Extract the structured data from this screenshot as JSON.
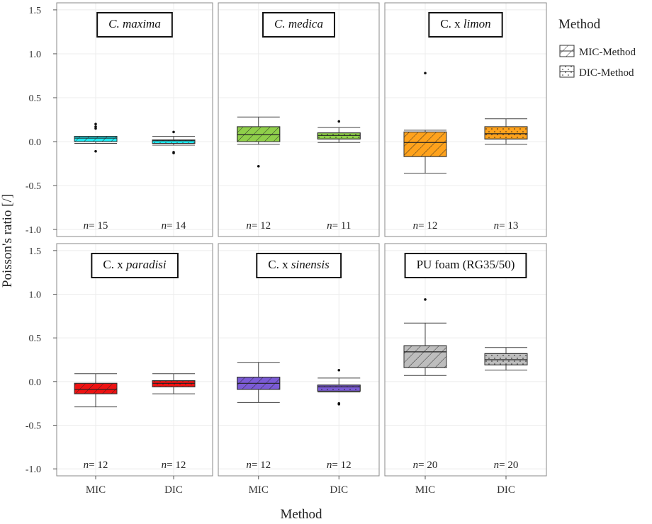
{
  "chart_data": {
    "type": "boxplot",
    "xlabel": "Method",
    "ylabel": "Poisson's ratio [/]",
    "ylim": [
      -1.08,
      1.58
    ],
    "yticks": [
      "1.5",
      "1.0",
      "0.5",
      "0.0",
      "-0.5",
      "-1.0"
    ],
    "ytick_values": [
      1.5,
      1.0,
      0.5,
      0.0,
      -0.5,
      -1.0
    ],
    "categories": [
      "MIC",
      "DIC"
    ],
    "legend": {
      "title": "Method",
      "entries": [
        {
          "label": "MIC-Method",
          "pattern": "hatch"
        },
        {
          "label": "DIC-Method",
          "pattern": "dots"
        }
      ]
    },
    "panels": [
      {
        "title_italic": "C. maxima",
        "title_plain": "",
        "color": "#1ee8f0",
        "boxes": [
          {
            "category": "MIC",
            "min": -0.02,
            "q1": 0.0,
            "median": 0.04,
            "q3": 0.06,
            "max": 0.06,
            "outliers": [
              0.2,
              0.17,
              0.15,
              -0.11
            ],
            "n_label": "n",
            "n_value": "= 15"
          },
          {
            "category": "DIC",
            "min": -0.04,
            "q1": -0.02,
            "median": 0.01,
            "q3": 0.02,
            "max": 0.06,
            "outliers": [
              0.11,
              -0.12,
              -0.13
            ],
            "n_label": "n",
            "n_value": "= 14"
          }
        ]
      },
      {
        "title_italic": "C. medica",
        "title_plain": "",
        "color": "#8fcf4a",
        "boxes": [
          {
            "category": "MIC",
            "min": -0.03,
            "q1": 0.0,
            "median": 0.08,
            "q3": 0.17,
            "max": 0.28,
            "outliers": [
              -0.28
            ],
            "n_label": "n",
            "n_value": "= 12"
          },
          {
            "category": "DIC",
            "min": -0.01,
            "q1": 0.03,
            "median": 0.07,
            "q3": 0.1,
            "max": 0.16,
            "outliers": [
              0.23
            ],
            "n_label": "n",
            "n_value": "= 11"
          }
        ]
      },
      {
        "title_italic": "limon",
        "title_plain": "C. x ",
        "color": "#ffa21c",
        "boxes": [
          {
            "category": "MIC",
            "min": -0.36,
            "q1": -0.17,
            "median": -0.01,
            "q3": 0.11,
            "max": 0.13,
            "outliers": [
              0.78
            ],
            "n_label": "n",
            "n_value": "= 12"
          },
          {
            "category": "DIC",
            "min": -0.03,
            "q1": 0.03,
            "median": 0.09,
            "q3": 0.17,
            "max": 0.26,
            "outliers": [],
            "n_label": "n",
            "n_value": "= 13"
          }
        ]
      },
      {
        "title_italic": "paradisi",
        "title_plain": "C. x ",
        "color": "#ee1212",
        "boxes": [
          {
            "category": "MIC",
            "min": -0.29,
            "q1": -0.14,
            "median": -0.09,
            "q3": -0.02,
            "max": 0.09,
            "outliers": [],
            "n_label": "n",
            "n_value": "= 12"
          },
          {
            "category": "DIC",
            "min": -0.14,
            "q1": -0.06,
            "median": -0.02,
            "q3": 0.01,
            "max": 0.09,
            "outliers": [],
            "n_label": "n",
            "n_value": "= 12"
          }
        ]
      },
      {
        "title_italic": "sinensis",
        "title_plain": "C. x ",
        "color": "#7b5bd6",
        "boxes": [
          {
            "category": "MIC",
            "min": -0.24,
            "q1": -0.09,
            "median": -0.02,
            "q3": 0.05,
            "max": 0.22,
            "outliers": [],
            "n_label": "n",
            "n_value": "= 12"
          },
          {
            "category": "DIC",
            "min": -0.12,
            "q1": -0.11,
            "median": -0.06,
            "q3": -0.04,
            "max": 0.04,
            "outliers": [
              0.13,
              -0.25,
              -0.26
            ],
            "n_label": "n",
            "n_value": "= 12"
          }
        ]
      },
      {
        "title_italic": "",
        "title_plain": "PU foam (RG35/50)",
        "color": "#bdbdbd",
        "boxes": [
          {
            "category": "MIC",
            "min": 0.07,
            "q1": 0.16,
            "median": 0.34,
            "q3": 0.41,
            "max": 0.67,
            "outliers": [
              0.94
            ],
            "n_label": "n",
            "n_value": "= 20"
          },
          {
            "category": "DIC",
            "min": 0.13,
            "q1": 0.19,
            "median": 0.25,
            "q3": 0.32,
            "max": 0.39,
            "outliers": [],
            "n_label": "n",
            "n_value": "= 20"
          }
        ]
      }
    ]
  }
}
